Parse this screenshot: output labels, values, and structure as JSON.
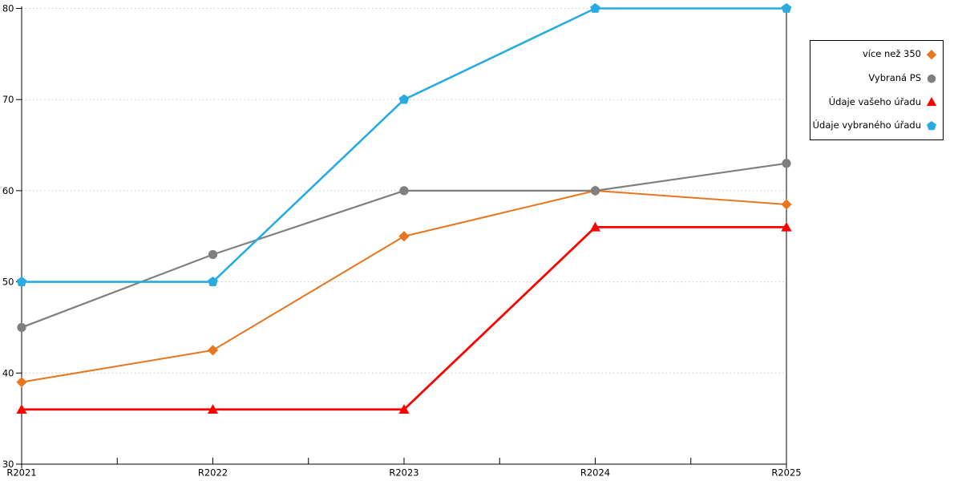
{
  "chart_data": {
    "type": "line",
    "title": "",
    "xlabel": "",
    "ylabel": "",
    "categories": [
      "R2021",
      "R2022",
      "R2023",
      "R2024",
      "R2025"
    ],
    "y_ticks": [
      30,
      40,
      50,
      60,
      70,
      80
    ],
    "ylim": [
      30,
      80
    ],
    "grid": "horizontal-dotted",
    "legend_position": "top-right-outside",
    "series": [
      {
        "name": "více než 350",
        "color": "#E8761E",
        "marker": "diamond",
        "values": [
          39,
          42.5,
          55,
          60,
          58.5
        ]
      },
      {
        "name": "Vybraná PS",
        "color": "#7F7F7F",
        "marker": "circle",
        "values": [
          45,
          53,
          60,
          60,
          63
        ]
      },
      {
        "name": "Údaje vašeho úřadu",
        "color": "#FF0000",
        "marker": "triangle",
        "values": [
          36,
          36,
          36,
          56,
          56
        ]
      },
      {
        "name": "Údaje vybraného úřadu",
        "color": "#29ABE2",
        "marker": "pentagon",
        "values": [
          50,
          50,
          70,
          80,
          80
        ]
      }
    ]
  },
  "colors": {
    "background": "#ffffff",
    "grid": "#C8C8C8",
    "axis": "#000000",
    "text": "#000000",
    "legend_border": "#000000"
  }
}
